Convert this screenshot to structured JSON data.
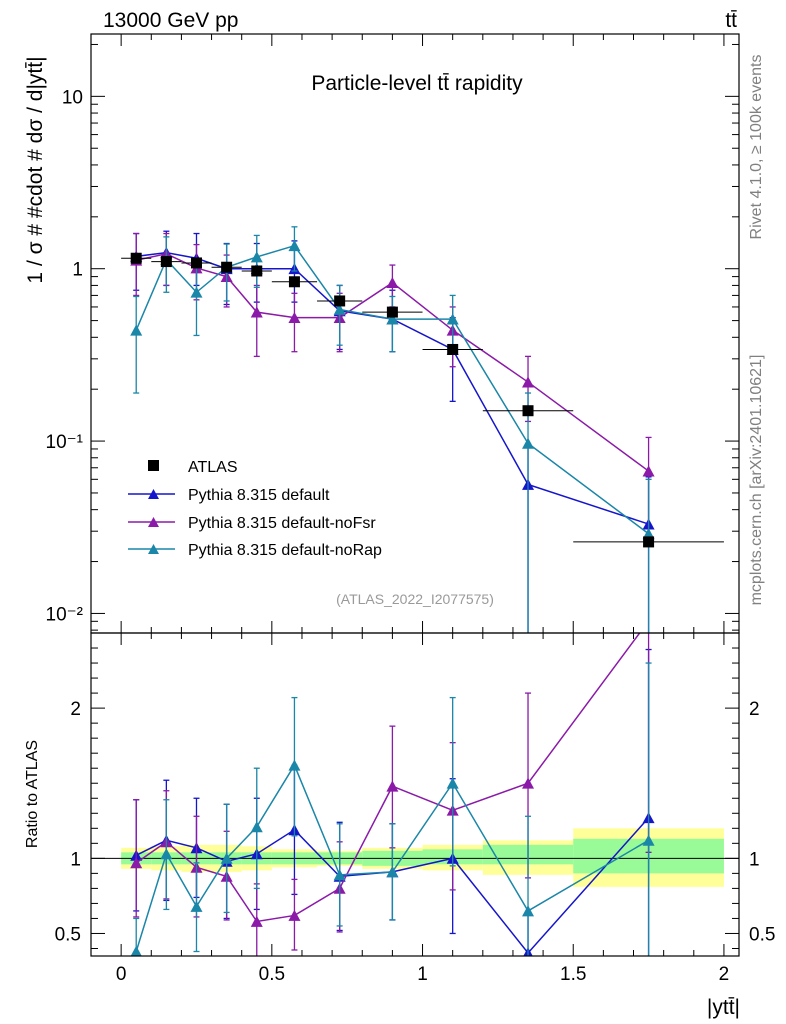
{
  "header": {
    "left": "13000 GeV pp",
    "right": "tt̄"
  },
  "side_texts": {
    "rivet": "Rivet 4.1.0, ≥ 100k events",
    "mcplots": "mcplots.cern.ch [arXiv:2401.10621]"
  },
  "chart_data": [
    {
      "type": "scatter",
      "panel": "main",
      "title": "Particle-level tt̄ rapidity",
      "ylabel": "1 / σ # #cdot # dσ / d|ytt̄|",
      "yscale": "log",
      "ylim": [
        0.0077,
        23
      ],
      "xlim": [
        -0.1,
        2.05
      ],
      "yticks": [
        {
          "v": 0.01,
          "label": "10⁻²"
        },
        {
          "v": 0.1,
          "label": "10⁻¹"
        },
        {
          "v": 1,
          "label": "1"
        },
        {
          "v": 10,
          "label": "10"
        }
      ],
      "analysis_tag": "(ATLAS_2022_I2077575)",
      "series": [
        {
          "name": "ATLAS",
          "color": "#000000",
          "marker": "square",
          "line": false,
          "x": [
            0.05,
            0.15,
            0.25,
            0.35,
            0.45,
            0.575,
            0.725,
            0.9,
            1.1,
            1.35,
            1.75
          ],
          "xerr": [
            0.05,
            0.05,
            0.05,
            0.05,
            0.05,
            0.075,
            0.075,
            0.1,
            0.1,
            0.15,
            0.25
          ],
          "y": [
            1.15,
            1.1,
            1.08,
            1.02,
            0.97,
            0.84,
            0.65,
            0.56,
            0.34,
            0.15,
            0.026
          ]
        },
        {
          "name": "Pythia 8.315 default",
          "color": "#1515cc",
          "marker": "triangle",
          "line": true,
          "x": [
            0.05,
            0.15,
            0.25,
            0.35,
            0.45,
            0.575,
            0.725,
            0.9,
            1.1,
            1.35,
            1.75
          ],
          "y": [
            1.18,
            1.24,
            1.15,
            1.0,
            1.0,
            1.0,
            0.57,
            0.51,
            0.34,
            0.056,
            0.033
          ],
          "ylo": [
            0.75,
            0.8,
            0.8,
            0.62,
            0.64,
            0.64,
            0.34,
            0.33,
            0.17,
            0.004,
            0.004
          ],
          "yhi": [
            1.6,
            1.65,
            1.6,
            1.4,
            1.4,
            1.45,
            0.8,
            0.75,
            0.52,
            0.096,
            0.062
          ]
        },
        {
          "name": "Pythia 8.315 default-noFsr",
          "color": "#8b1aa8",
          "marker": "triangle",
          "line": true,
          "x": [
            0.05,
            0.15,
            0.25,
            0.35,
            0.45,
            0.575,
            0.725,
            0.9,
            1.1,
            1.35,
            1.75
          ],
          "y": [
            1.12,
            1.22,
            1.01,
            0.9,
            0.56,
            0.52,
            0.52,
            0.83,
            0.44,
            0.22,
            0.067
          ],
          "ylo": [
            0.7,
            0.8,
            0.66,
            0.6,
            0.31,
            0.33,
            0.33,
            0.6,
            0.27,
            0.13,
            0.027
          ],
          "yhi": [
            1.6,
            1.6,
            1.38,
            1.2,
            0.8,
            0.72,
            0.72,
            1.05,
            0.6,
            0.31,
            0.105
          ]
        },
        {
          "name": "Pythia 8.315 default-noRap",
          "color": "#1a86a8",
          "marker": "triangle",
          "line": true,
          "x": [
            0.05,
            0.15,
            0.25,
            0.35,
            0.45,
            0.575,
            0.725,
            0.9,
            1.1,
            1.35,
            1.75
          ],
          "y": [
            0.44,
            1.13,
            0.73,
            1.02,
            1.17,
            1.36,
            0.58,
            0.51,
            0.51,
            0.097,
            0.029
          ],
          "ylo": [
            0.19,
            0.73,
            0.41,
            0.65,
            0.78,
            0.97,
            0.36,
            0.33,
            0.32,
            0.004,
            0.004
          ],
          "yhi": [
            0.69,
            1.53,
            1.05,
            1.39,
            1.56,
            1.75,
            0.8,
            0.69,
            0.7,
            0.19,
            0.06
          ]
        }
      ]
    },
    {
      "type": "scatter",
      "panel": "ratio",
      "ylabel": "Ratio to ATLAS",
      "xlabel": "|ytt̄|",
      "ylim": [
        0.35,
        2.5
      ],
      "xlim": [
        -0.1,
        2.05
      ],
      "xticks": [
        {
          "v": 0,
          "label": "0"
        },
        {
          "v": 0.5,
          "label": "0.5"
        },
        {
          "v": 1,
          "label": "1"
        },
        {
          "v": 1.5,
          "label": "1.5"
        },
        {
          "v": 2,
          "label": "2"
        }
      ],
      "yticks": [
        {
          "v": 0.5,
          "label": "0.5"
        },
        {
          "v": 1,
          "label": "1"
        },
        {
          "v": 2,
          "label": "2"
        }
      ],
      "bands": {
        "xedges": [
          0,
          0.1,
          0.2,
          0.3,
          0.4,
          0.5,
          0.65,
          0.8,
          1.0,
          1.2,
          1.5,
          2.0
        ],
        "stat_lo": [
          0.96,
          0.96,
          0.96,
          0.96,
          0.96,
          0.96,
          0.96,
          0.95,
          0.96,
          0.96,
          0.9
        ],
        "stat_hi": [
          1.04,
          1.04,
          1.04,
          1.04,
          1.04,
          1.04,
          1.04,
          1.05,
          1.06,
          1.09,
          1.13
        ],
        "total_lo": [
          0.93,
          0.92,
          0.91,
          0.91,
          0.92,
          0.94,
          0.95,
          0.93,
          0.92,
          0.89,
          0.81
        ],
        "total_hi": [
          1.07,
          1.08,
          1.09,
          1.09,
          1.08,
          1.06,
          1.05,
          1.07,
          1.09,
          1.12,
          1.2
        ],
        "stat_color": "#98fb98",
        "total_color": "#ffff99"
      },
      "series": [
        {
          "name": "Pythia 8.315 default",
          "color": "#1515cc",
          "x": [
            0.05,
            0.15,
            0.25,
            0.35,
            0.45,
            0.575,
            0.725,
            0.9,
            1.1,
            1.35,
            1.75
          ],
          "y": [
            1.02,
            1.12,
            1.07,
            0.98,
            1.03,
            1.19,
            0.88,
            0.91,
            1.0,
            0.37,
            1.27
          ],
          "ylo": [
            0.65,
            0.72,
            0.74,
            0.6,
            0.66,
            0.76,
            0.52,
            0.59,
            0.5,
            0.03,
            0.15
          ],
          "yhi": [
            1.39,
            1.52,
            1.4,
            1.36,
            1.4,
            1.62,
            1.24,
            1.23,
            1.53,
            0.64,
            2.39
          ]
        },
        {
          "name": "Pythia 8.315 default-noFsr",
          "color": "#8b1aa8",
          "x": [
            0.05,
            0.15,
            0.25,
            0.35,
            0.45,
            0.575,
            0.725,
            0.9,
            1.1,
            1.35,
            1.75
          ],
          "y": [
            0.97,
            1.11,
            0.94,
            0.88,
            0.58,
            0.62,
            0.8,
            1.48,
            1.32,
            1.5,
            2.58
          ],
          "ylo": [
            0.61,
            0.73,
            0.61,
            0.59,
            0.32,
            0.39,
            0.51,
            1.07,
            0.79,
            0.87,
            1.04
          ],
          "yhi": [
            1.39,
            1.45,
            1.28,
            1.18,
            0.83,
            0.86,
            1.11,
            1.88,
            1.77,
            2.1,
            4.0
          ]
        },
        {
          "name": "Pythia 8.315 default-noRap",
          "color": "#1a86a8",
          "x": [
            0.05,
            0.15,
            0.25,
            0.35,
            0.45,
            0.575,
            0.725,
            0.9,
            1.1,
            1.35,
            1.75
          ],
          "y": [
            0.38,
            1.03,
            0.68,
            1.0,
            1.21,
            1.62,
            0.89,
            0.91,
            1.5,
            0.65,
            1.12
          ],
          "ylo": [
            0.16,
            0.66,
            0.38,
            0.64,
            0.8,
            1.15,
            0.55,
            0.59,
            0.95,
            0.03,
            0.15
          ],
          "yhi": [
            0.6,
            1.39,
            0.97,
            1.36,
            1.6,
            2.07,
            1.23,
            1.23,
            2.07,
            1.28,
            2.3
          ]
        }
      ]
    }
  ]
}
